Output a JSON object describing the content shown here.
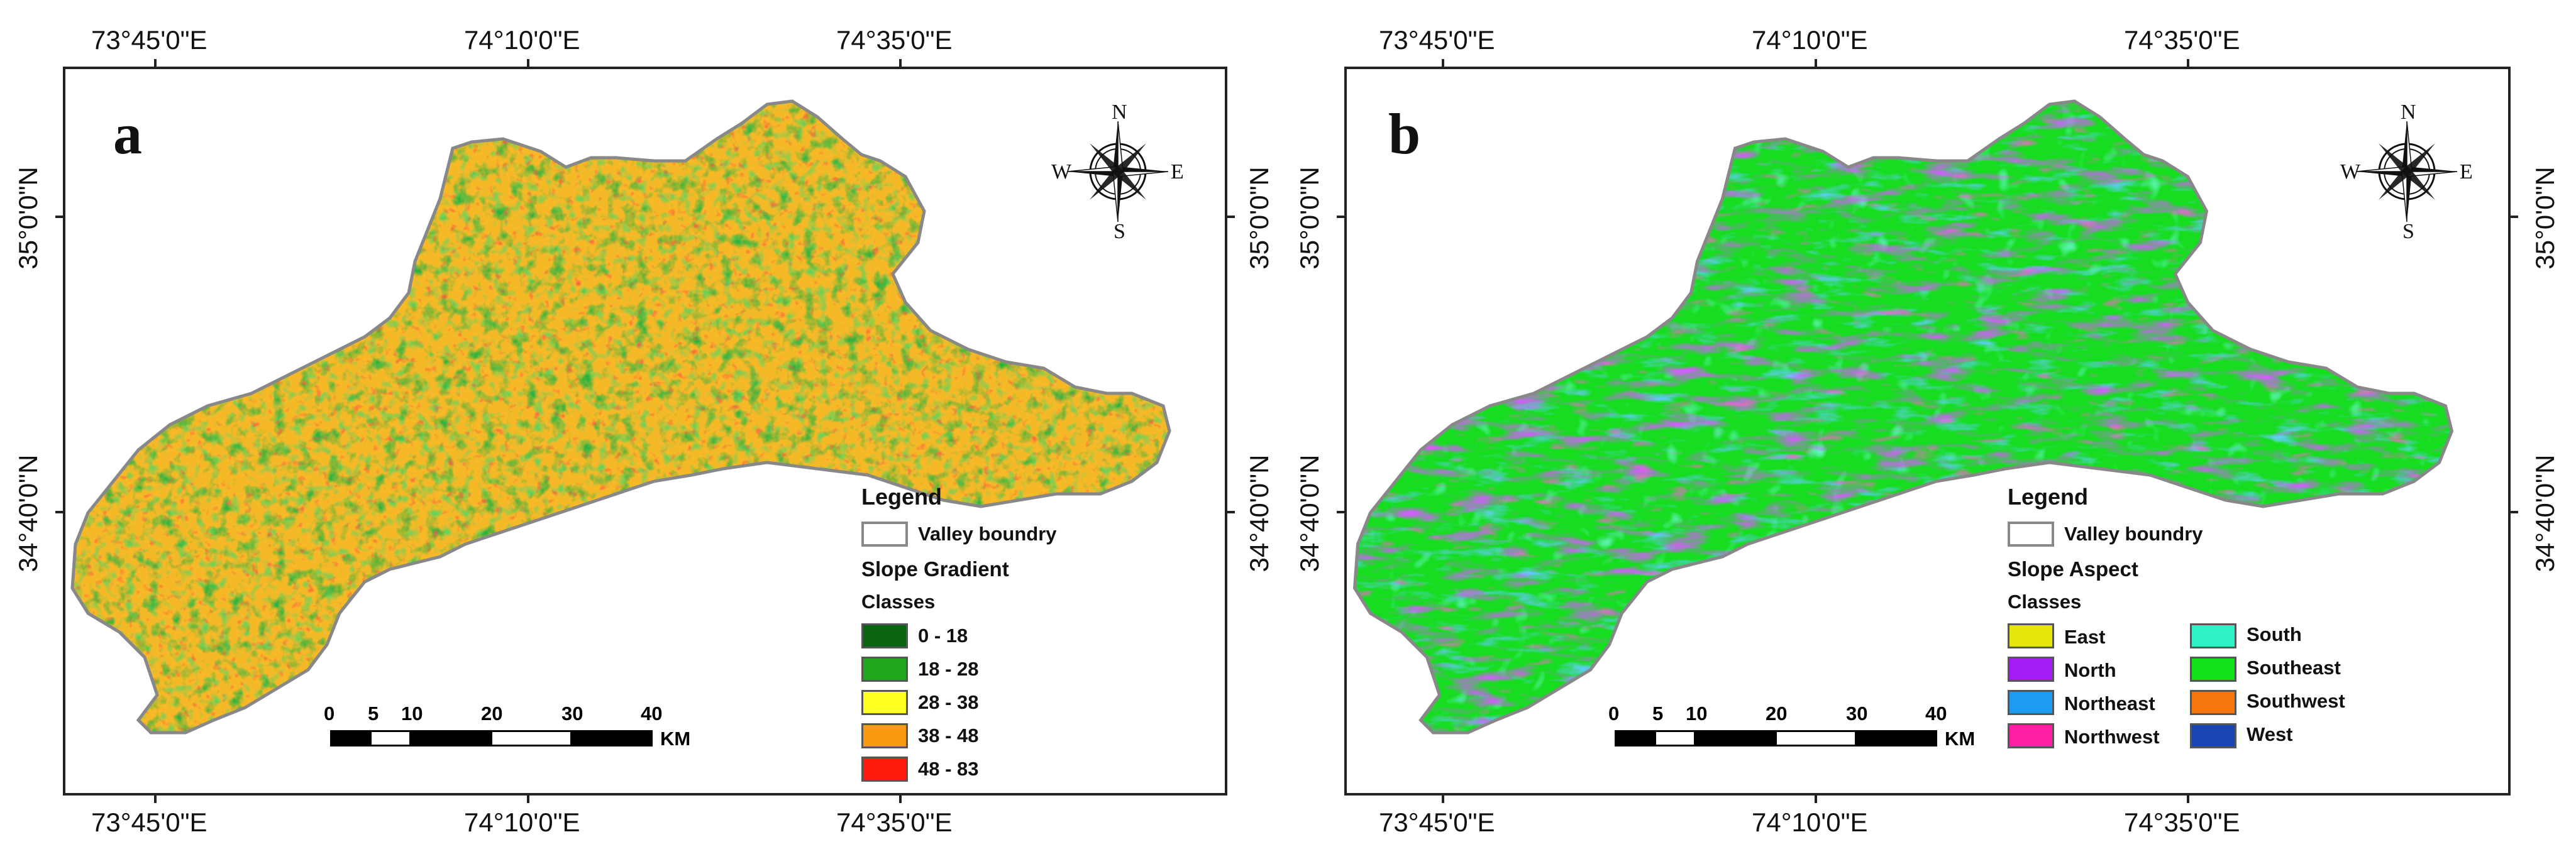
{
  "panels": [
    {
      "letter": "a",
      "top_coords": [
        "73°45'0\"E",
        "74°10'0\"E",
        "74°35'0\"E"
      ],
      "bottom_coords": [
        "73°45'0\"E",
        "74°10'0\"E",
        "74°35'0\"E"
      ],
      "left_coords": [
        "35°0'0\"N",
        "34°40'0\"N"
      ],
      "right_coords": [
        "35°0'0\"N",
        "34°40'0\"N"
      ],
      "compass": {
        "n": "N",
        "s": "S",
        "e": "E",
        "w": "W"
      },
      "legend": {
        "title": "Legend",
        "boundary_label": "Valley boundry",
        "layer_title": "Slope Gradient",
        "classes_title": "Classes",
        "classes": [
          {
            "label": "0 - 18",
            "color": "#0b6412"
          },
          {
            "label": "18 - 28",
            "color": "#21a71c"
          },
          {
            "label": "28 - 38",
            "color": "#ffff1e"
          },
          {
            "label": "38 - 48",
            "color": "#f99a10"
          },
          {
            "label": "48 - 83",
            "color": "#ff1a0a"
          }
        ]
      },
      "scale": {
        "ticks": [
          "0",
          "5",
          "10",
          "20",
          "30",
          "40"
        ],
        "unit": "KM"
      }
    },
    {
      "letter": "b",
      "top_coords": [
        "73°45'0\"E",
        "74°10'0\"E",
        "74°35'0\"E"
      ],
      "bottom_coords": [
        "73°45'0\"E",
        "74°10'0\"E",
        "74°35'0\"E"
      ],
      "left_coords": [
        "35°0'0\"N",
        "34°40'0\"N"
      ],
      "right_coords": [
        "35°0'0\"N",
        "34°40'0\"N"
      ],
      "compass": {
        "n": "N",
        "s": "S",
        "e": "E",
        "w": "W"
      },
      "legend": {
        "title": "Legend",
        "boundary_label": "Valley boundry",
        "layer_title": "Slope Aspect",
        "classes_title": "Classes",
        "classes": [
          {
            "label": "East",
            "color": "#e7e60c"
          },
          {
            "label": "North",
            "color": "#a31cf6"
          },
          {
            "label": "Northeast",
            "color": "#1e9bf0"
          },
          {
            "label": "Northwest",
            "color": "#ff1ea6"
          },
          {
            "label": "South",
            "color": "#2ff3c8"
          },
          {
            "label": "Southeast",
            "color": "#12e21a"
          },
          {
            "label": "Southwest",
            "color": "#f4780e"
          },
          {
            "label": "West",
            "color": "#1746b3"
          }
        ]
      },
      "scale": {
        "ticks": [
          "0",
          "5",
          "10",
          "20",
          "30",
          "40"
        ],
        "unit": "KM"
      }
    }
  ]
}
